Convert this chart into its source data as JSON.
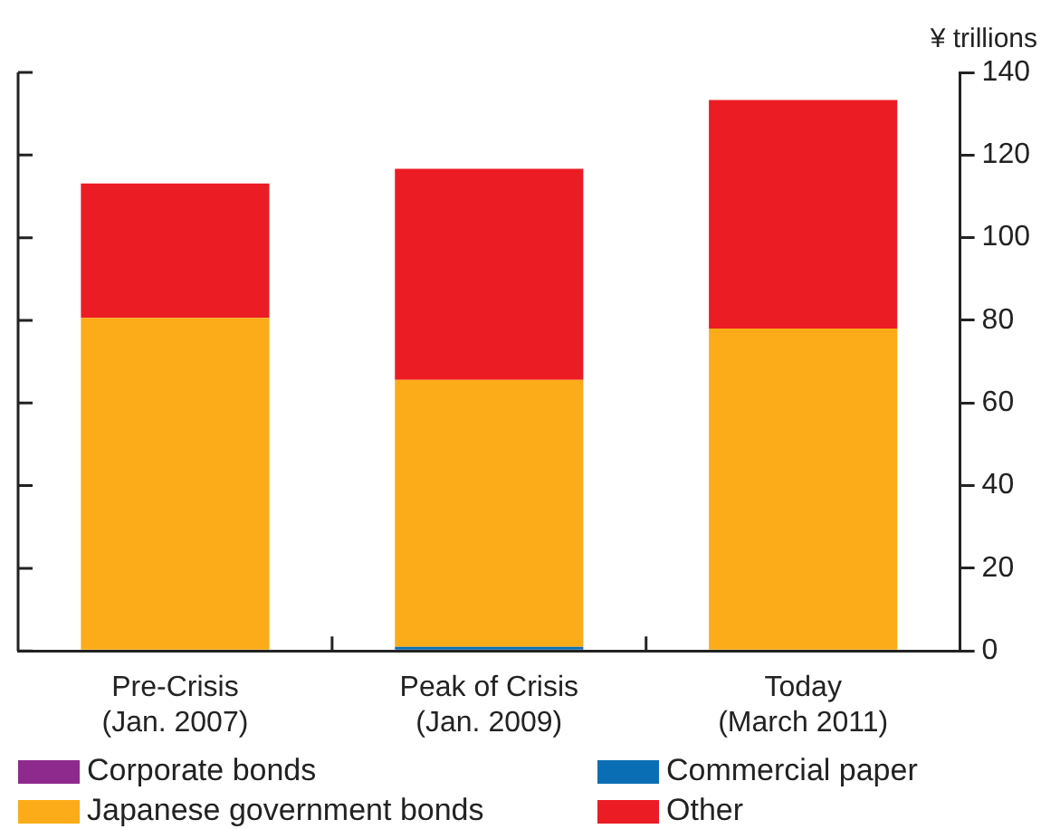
{
  "chart_data": {
    "type": "bar",
    "stacked": true,
    "ylabel": "¥ trillions",
    "categories": [
      "Pre-Crisis\n(Jan. 2007)",
      "Peak of Crisis\n(Jan. 2009)",
      "Today\n(March 2011)"
    ],
    "series": [
      {
        "name": "Corporate bonds",
        "color": "#8e2a8e",
        "values": [
          0,
          0,
          0
        ]
      },
      {
        "name": "Commercial paper",
        "color": "#0a6eb4",
        "values": [
          0,
          1,
          0
        ]
      },
      {
        "name": "Japanese government bonds",
        "color": "#fbac18",
        "values": [
          80.6,
          64.6,
          78
        ]
      },
      {
        "name": "Other",
        "color": "#ec1c24",
        "values": [
          32.5,
          51.1,
          55.3
        ]
      }
    ],
    "ylim": [
      0,
      140
    ],
    "yticks": [
      0,
      20,
      40,
      60,
      80,
      100,
      120,
      140
    ],
    "grid": false,
    "legend": "bottom"
  }
}
